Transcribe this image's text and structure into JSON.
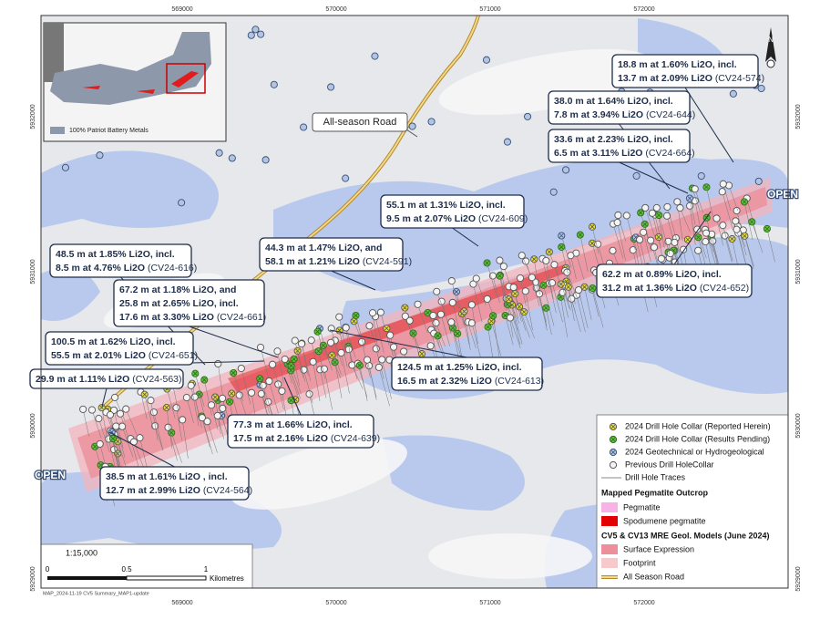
{
  "map": {
    "easting_labels": [
      "569000",
      "570000",
      "571000",
      "572000"
    ],
    "northing_labels": [
      "5932000",
      "5931000",
      "5930000",
      "5929000"
    ],
    "inset": {
      "legend": "100% Patriot Battery Metals"
    },
    "road_label": "All-season Road",
    "open_labels": [
      "OPEN",
      "OPEN"
    ],
    "north": "N",
    "callouts": [
      {
        "lines": [
          "18.8 m at 1.60% Li2O, incl.",
          "13.7 m at 2.09% Li2O"
        ],
        "hole": "(CV24-574)"
      },
      {
        "lines": [
          "38.0 m at 1.64% Li2O, incl.",
          "7.8 m at 3.94% Li2O"
        ],
        "hole": "(CV24-644)"
      },
      {
        "lines": [
          "33.6 m at 2.23% Li2O, incl.",
          "6.5 m at 3.11% Li2O"
        ],
        "hole": "(CV24-664)"
      },
      {
        "lines": [
          "55.1 m at 1.31% Li2O, incl.",
          "9.5 m at 2.07% Li2O"
        ],
        "hole": "(CV24-609)"
      },
      {
        "lines": [
          "44.3 m at 1.47% Li2O, and",
          "58.1 m at 1.21% Li2O"
        ],
        "hole": "(CV24-591)"
      },
      {
        "lines": [
          "48.5 m at 1.85% Li2O, incl.",
          "8.5 m at 4.76% Li2O"
        ],
        "hole": "(CV24-616)"
      },
      {
        "lines": [
          "67.2 m at 1.18% Li2O, and",
          "25.8 m at 2.65% Li2O, incl.",
          "17.6 m at 3.30% Li2O"
        ],
        "hole": "(CV24-661)"
      },
      {
        "lines": [
          "100.5 m at 1.62% Li2O, incl.",
          "55.5 m at 2.01% Li2O"
        ],
        "hole": "(CV24-651)"
      },
      {
        "lines": [
          "29.9 m at 1.11% Li2O"
        ],
        "hole": "(CV24-563)"
      },
      {
        "lines": [
          "124.5 m at 1.25% Li2O, incl.",
          "16.5 m at 2.32% Li2O"
        ],
        "hole": "(CV24-613)"
      },
      {
        "lines": [
          "77.3 m at 1.66% Li2O, incl.",
          "17.5 m at 2.16% Li2O"
        ],
        "hole": "(CV24-639)"
      },
      {
        "lines": [
          "38.5 m at 1.61% Li2O , incl.",
          "12.7 m at 2.99% Li2O"
        ],
        "hole": "(CV24-564)"
      },
      {
        "lines": [
          "62.2 m at 0.89% Li2O, incl.",
          "31.2 m at 1.36% Li2O"
        ],
        "hole": "(CV24-652)"
      }
    ],
    "legend": {
      "collars": [
        "2024 Drill Hole Collar (Reported Herein)",
        "2024 Drill Hole Collar (Results Pending)",
        "2024 Geotechnical or Hydrogeological",
        "Previous Drill HoleCollar",
        "Drill Hole Traces"
      ],
      "pegmatite_title": "Mapped Pegmatite Outcrop",
      "pegmatite": [
        "Pegmatite",
        "Spodumene pegmatite"
      ],
      "model_title": "CV5 & CV13 MRE Geol. Models (June 2024)",
      "model": [
        "Surface Expression",
        "Footprint",
        "All Season Road"
      ]
    },
    "scale": {
      "ratio": "1:15,000",
      "ticks": [
        "0",
        "0.5",
        "1"
      ],
      "unit": "Kilometres"
    },
    "footer": "MAP_2024-11-19 CV5 Summary_MAP1-update"
  }
}
